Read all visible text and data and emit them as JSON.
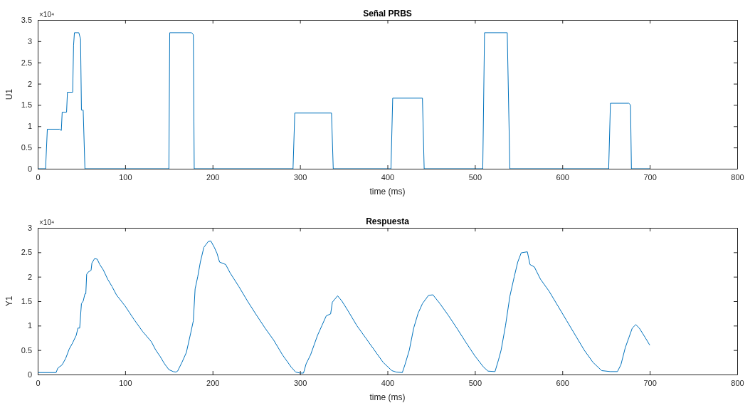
{
  "chart_data": [
    {
      "type": "line",
      "title": "Señal PRBS",
      "xlabel": "time (ms)",
      "ylabel": "U1",
      "annotations": [
        "×10⁴"
      ],
      "grid": false,
      "xlim": [
        0,
        800
      ],
      "xticks": [
        0,
        100,
        200,
        300,
        400,
        500,
        600,
        700,
        800
      ],
      "ylim": [
        0,
        3.5
      ],
      "yticks": [
        0,
        0.5,
        1,
        1.5,
        2,
        2.5,
        3,
        3.5
      ],
      "series": [
        {
          "color": "#0072bd",
          "x": [
            0,
            9,
            11,
            25,
            27,
            28,
            33,
            34,
            40,
            41,
            42,
            47,
            49,
            50,
            52,
            54,
            150,
            151,
            176,
            178,
            179,
            292,
            294,
            336,
            338,
            404,
            406,
            440,
            442,
            509,
            511,
            537,
            540,
            653,
            655,
            676,
            678,
            679,
            700
          ],
          "values": [
            0,
            0,
            0.93,
            0.93,
            0.9,
            1.33,
            1.33,
            1.8,
            1.8,
            2.9,
            3.2,
            3.2,
            3.05,
            1.38,
            1.38,
            0,
            0,
            3.2,
            3.2,
            3.15,
            0,
            0,
            1.31,
            1.31,
            0,
            0,
            1.66,
            1.66,
            0,
            0,
            3.2,
            3.2,
            0,
            0,
            1.54,
            1.54,
            1.5,
            0,
            0
          ]
        }
      ]
    },
    {
      "type": "line",
      "title": "Respuesta",
      "xlabel": "time (ms)",
      "ylabel": "Y1",
      "annotations": [
        "×10⁴"
      ],
      "grid": false,
      "xlim": [
        0,
        800
      ],
      "xticks": [
        0,
        100,
        200,
        300,
        400,
        500,
        600,
        700,
        800
      ],
      "ylim": [
        0,
        3
      ],
      "yticks": [
        0,
        0.5,
        1,
        1.5,
        2,
        2.5,
        3
      ],
      "series": [
        {
          "color": "#0072bd",
          "x": [
            0,
            21,
            23,
            28,
            32,
            36,
            40,
            44,
            46,
            48,
            50,
            52,
            54,
            55,
            56,
            58,
            60,
            61,
            62,
            65,
            68,
            71,
            75,
            80,
            85,
            90,
            100,
            110,
            120,
            130,
            135,
            140,
            145,
            150,
            155,
            158,
            160,
            165,
            170,
            175,
            178,
            180,
            183,
            186,
            190,
            195,
            198,
            202,
            205,
            208,
            215,
            220,
            230,
            240,
            250,
            260,
            270,
            280,
            290,
            295,
            300,
            304,
            307,
            312,
            316,
            320,
            325,
            330,
            335,
            337,
            343,
            348,
            355,
            365,
            375,
            385,
            395,
            405,
            410,
            417,
            420,
            425,
            430,
            435,
            440,
            447,
            452,
            460,
            470,
            480,
            490,
            500,
            510,
            515,
            523,
            527,
            530,
            535,
            540,
            545,
            549,
            553,
            560,
            563,
            568,
            575,
            585,
            595,
            605,
            615,
            625,
            635,
            645,
            655,
            663,
            667,
            672,
            676,
            680,
            684,
            688,
            695,
            700
          ],
          "values": [
            0.04,
            0.04,
            0.13,
            0.2,
            0.33,
            0.52,
            0.65,
            0.8,
            0.95,
            0.95,
            1.45,
            1.5,
            1.65,
            1.65,
            2.05,
            2.1,
            2.12,
            2.13,
            2.28,
            2.37,
            2.36,
            2.25,
            2.14,
            1.95,
            1.8,
            1.63,
            1.4,
            1.13,
            0.88,
            0.67,
            0.5,
            0.37,
            0.22,
            0.1,
            0.06,
            0.05,
            0.07,
            0.25,
            0.45,
            0.85,
            1.1,
            1.75,
            2,
            2.3,
            2.6,
            2.72,
            2.73,
            2.6,
            2.48,
            2.3,
            2.25,
            2.08,
            1.8,
            1.5,
            1.22,
            0.95,
            0.7,
            0.4,
            0.15,
            0.05,
            0.03,
            0.03,
            0.22,
            0.4,
            0.6,
            0.8,
            1,
            1.2,
            1.24,
            1.48,
            1.61,
            1.5,
            1.3,
            1,
            0.75,
            0.5,
            0.25,
            0.08,
            0.05,
            0.04,
            0.2,
            0.5,
            0.95,
            1.25,
            1.45,
            1.62,
            1.63,
            1.45,
            1.2,
            0.93,
            0.65,
            0.38,
            0.15,
            0.07,
            0.06,
            0.3,
            0.5,
            1,
            1.6,
            2,
            2.3,
            2.49,
            2.51,
            2.25,
            2.2,
            1.95,
            1.7,
            1.4,
            1.1,
            0.8,
            0.5,
            0.25,
            0.08,
            0.06,
            0.06,
            0.2,
            0.55,
            0.75,
            0.95,
            1.02,
            0.95,
            0.75,
            0.6
          ]
        }
      ]
    }
  ]
}
